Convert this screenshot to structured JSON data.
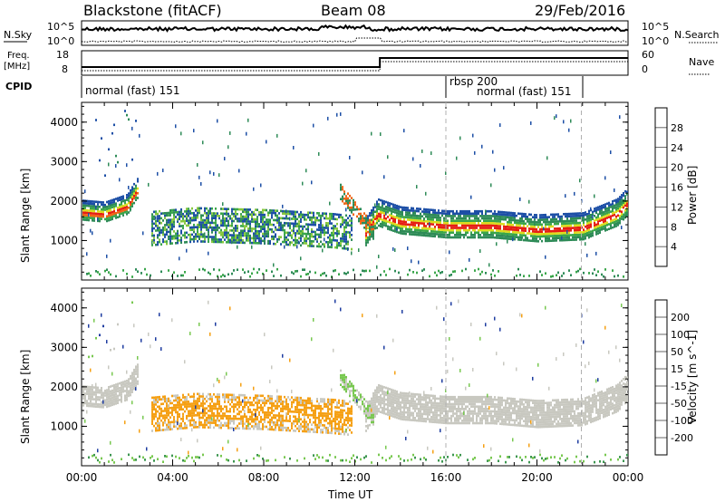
{
  "header": {
    "station": "Blackstone (fitACF)",
    "beam": "Beam 08",
    "date": "29/Feb/2016"
  },
  "noise_panel": {
    "left_label": "N.Sky",
    "right_label": "N.Search",
    "left_ticks": [
      "10^5",
      "10^0"
    ],
    "right_ticks": [
      "10^5",
      "10^0"
    ]
  },
  "freq_panel": {
    "left_label_line1": "Freq.",
    "left_label_line2": "[MHz]",
    "left_ticks": [
      "18",
      "8"
    ],
    "right_label": "Nave",
    "right_ticks": [
      "60",
      "0"
    ],
    "cpid_label": "CPID",
    "cpid_segments": [
      {
        "text": "normal (fast) 151"
      },
      {
        "text": "rbsp 200"
      },
      {
        "text": "normal (fast) 151"
      }
    ]
  },
  "colors": {
    "power": [
      "#1e1ee6",
      "#1d4fa6",
      "#2e8b57",
      "#3aa64a",
      "#87c83c",
      "#dcdc1e",
      "#f0a01e",
      "#f06414",
      "#e61e14"
    ],
    "velocity": [
      "#e61414",
      "#f05a14",
      "#f5a014",
      "#f0b428",
      "#c8c8c0",
      "#78c850",
      "#3c9650",
      "#1e3ca0",
      "#1414c8"
    ]
  },
  "chart_data": [
    {
      "type": "heatmap",
      "title": "Power",
      "ylabel": "Slant Range [km]",
      "ylim": [
        0,
        4500
      ],
      "yticks": [
        "1000",
        "2000",
        "3000",
        "4000"
      ],
      "xlabel": "Time UT",
      "xticks": [
        "00:00",
        "04:00",
        "08:00",
        "12:00",
        "16:00",
        "20:00",
        "00:00"
      ],
      "xlim_hours": [
        0,
        24
      ],
      "colorbar_label": "Power [dB]",
      "colorbar_ticks": [
        "4",
        "8",
        "12",
        "16",
        "20",
        "24",
        "28"
      ],
      "series": [
        {
          "band": "main",
          "x_hours": [
            0.0,
            1.0,
            2.0,
            2.4,
            12.4,
            13.0,
            14.0,
            16.0,
            18.0,
            20.0,
            22.0,
            23.5,
            24.0
          ],
          "y_center_km": [
            1750,
            1700,
            1900,
            2300,
            1150,
            1700,
            1500,
            1400,
            1400,
            1300,
            1350,
            1700,
            2000
          ],
          "power_db": [
            28,
            26,
            22,
            18,
            26,
            28,
            28,
            28,
            28,
            28,
            28,
            26,
            24
          ]
        },
        {
          "band": "lower",
          "x_hours": [
            3.0,
            5.0,
            8.0,
            11.0,
            11.8
          ],
          "y_center_km": [
            1300,
            1400,
            1350,
            1250,
            1200
          ],
          "power_db": [
            10,
            14,
            12,
            10,
            10
          ]
        }
      ]
    },
    {
      "type": "heatmap",
      "title": "Velocity",
      "ylabel": "Slant Range [km]",
      "ylim": [
        0,
        4500
      ],
      "yticks": [
        "1000",
        "2000",
        "3000",
        "4000"
      ],
      "xlabel": "Time UT",
      "xticks": [
        "00:00",
        "04:00",
        "08:00",
        "12:00",
        "16:00",
        "20:00",
        "00:00"
      ],
      "xlim_hours": [
        0,
        24
      ],
      "colorbar_label": "Velocity [m s^-1]",
      "colorbar_ticks": [
        "200",
        "100",
        "50",
        "15",
        "-15",
        "-50",
        "-100",
        "-200"
      ],
      "series": [
        {
          "band": "main",
          "x_hours": [
            0.0,
            2.4,
            13.0,
            24.0
          ],
          "velocity_ms": [
            0,
            0,
            0,
            0
          ]
        },
        {
          "band": "lower",
          "x_hours": [
            3.0,
            11.8
          ],
          "velocity_ms": [
            -60,
            -60
          ]
        }
      ]
    }
  ],
  "xaxis": {
    "label": "Time UT",
    "ticks": [
      "00:00",
      "04:00",
      "08:00",
      "12:00",
      "16:00",
      "20:00",
      "00:00"
    ]
  }
}
